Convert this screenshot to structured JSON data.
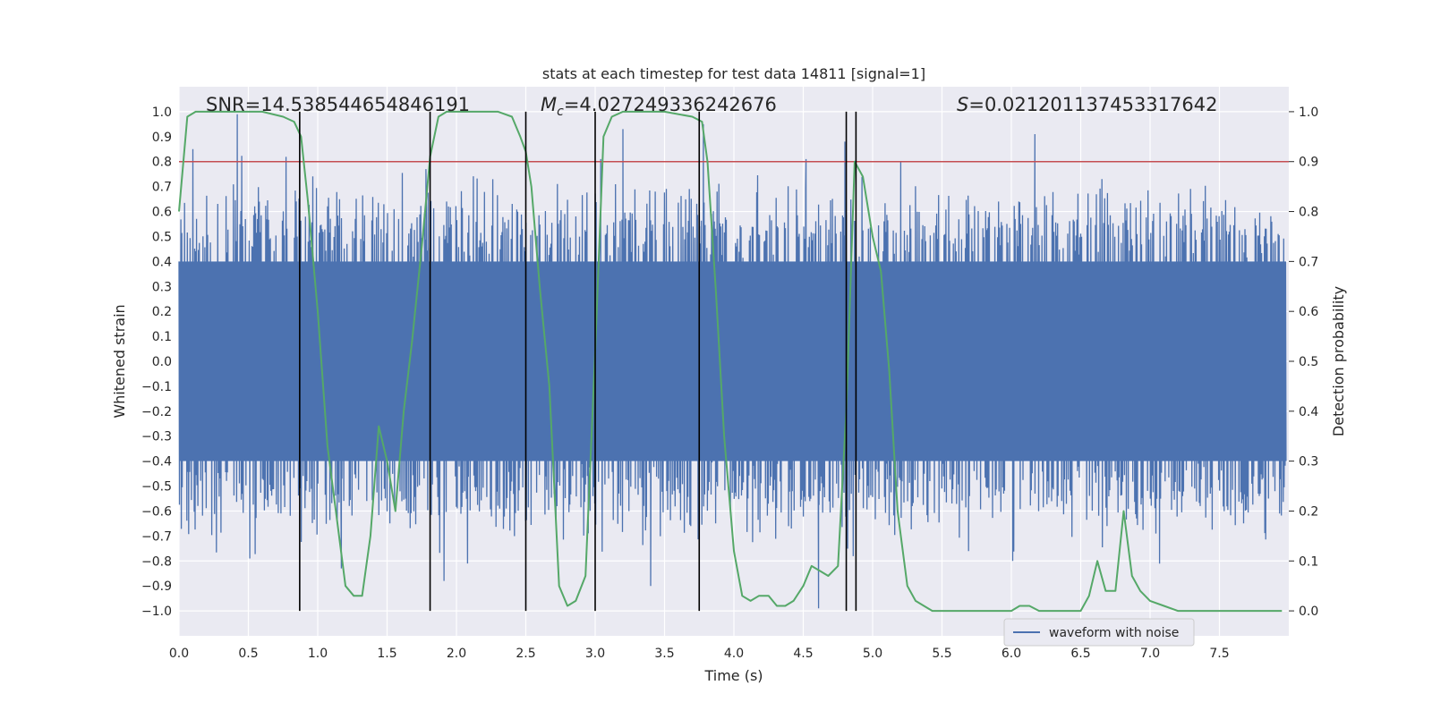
{
  "chart_data": {
    "type": "line",
    "title": "stats at each timestep for test data 14811 [signal=1]",
    "xlabel": "Time (s)",
    "ylabel": "Whitened strain",
    "y2label": "Detection probability",
    "xlim": [
      0.0,
      8.0
    ],
    "ylim": [
      -1.1,
      1.1
    ],
    "y2lim": [
      -0.05,
      1.05
    ],
    "xticks": [
      0.0,
      0.5,
      1.0,
      1.5,
      2.0,
      2.5,
      3.0,
      3.5,
      4.0,
      4.5,
      5.0,
      5.5,
      6.0,
      6.5,
      7.0,
      7.5
    ],
    "xtick_labels": [
      "0.0",
      "0.5",
      "1.0",
      "1.5",
      "2.0",
      "2.5",
      "3.0",
      "3.5",
      "4.0",
      "4.5",
      "5.0",
      "5.5",
      "6.0",
      "6.5",
      "7.0",
      "7.5"
    ],
    "yticks": [
      1.0,
      0.9,
      0.8,
      0.7,
      0.6,
      0.5,
      0.4,
      0.3,
      0.2,
      0.1,
      0.0,
      -0.1,
      -0.2,
      -0.3,
      -0.4,
      -0.5,
      -0.6,
      -0.7,
      -0.8,
      -0.9,
      -1.0
    ],
    "ytick_labels": [
      "1.0",
      "0.9",
      "0.8",
      "0.7",
      "0.6",
      "0.5",
      "0.4",
      "0.3",
      "0.2",
      "0.1",
      "0.0",
      "−0.1",
      "−0.2",
      "−0.3",
      "−0.4",
      "−0.5",
      "−0.6",
      "−0.7",
      "−0.8",
      "−0.9",
      "−1.0"
    ],
    "y2ticks": [
      1.0,
      0.9,
      0.8,
      0.7,
      0.6,
      0.5,
      0.4,
      0.3,
      0.2,
      0.1,
      0.0
    ],
    "y2tick_labels": [
      "1.0",
      "0.9",
      "0.8",
      "0.7",
      "0.6",
      "0.5",
      "0.4",
      "0.3",
      "0.2",
      "0.1",
      "0.0"
    ],
    "annotations": {
      "snr": "SNR=14.538544654846191",
      "mc_symbol": "M",
      "mc_sub": "c",
      "mc_value": "=4.027249336242676",
      "s_symbol": "S",
      "s_value": "=0.021201137453317642"
    },
    "threshold": {
      "axis": "y2",
      "value": 0.9,
      "color": "#c44e52"
    },
    "vlines": [
      0.87,
      1.81,
      2.5,
      3.0,
      3.75,
      4.81,
      4.88
    ],
    "waveform": {
      "name": "waveform with noise",
      "color": "#4c72b0",
      "band_core": 0.4,
      "band_hi": 0.65,
      "n_samples": 2400,
      "seed": 14811,
      "x_start": 0.0,
      "x_end": 7.98,
      "spikes": [
        {
          "x": 0.42,
          "y": 0.99
        },
        {
          "x": 0.1,
          "y": 0.78
        },
        {
          "x": 0.1,
          "y": 0.85
        },
        {
          "x": 0.51,
          "y": -0.79
        },
        {
          "x": 1.17,
          "y": -0.83
        },
        {
          "x": 1.78,
          "y": 0.77
        },
        {
          "x": 1.91,
          "y": -0.88
        },
        {
          "x": 2.08,
          "y": -0.81
        },
        {
          "x": 3.04,
          "y": 0.81
        },
        {
          "x": 3.2,
          "y": 0.93
        },
        {
          "x": 3.4,
          "y": -0.9
        },
        {
          "x": 3.78,
          "y": 0.95
        },
        {
          "x": 4.61,
          "y": -0.99
        },
        {
          "x": 4.8,
          "y": 0.88
        },
        {
          "x": 6.01,
          "y": -0.8
        },
        {
          "x": 6.17,
          "y": 0.91
        },
        {
          "x": 4.52,
          "y": 0.81
        }
      ]
    },
    "probability": {
      "name": "detection probability",
      "color": "#55a868",
      "x": [
        0.0,
        0.06,
        0.12,
        0.2,
        0.4,
        0.6,
        0.75,
        0.83,
        0.88,
        0.93,
        1.0,
        1.07,
        1.14,
        1.2,
        1.26,
        1.32,
        1.38,
        1.44,
        1.5,
        1.56,
        1.62,
        1.68,
        1.75,
        1.81,
        1.87,
        1.93,
        2.0,
        2.1,
        2.3,
        2.4,
        2.46,
        2.5,
        2.54,
        2.6,
        2.67,
        2.74,
        2.8,
        2.86,
        2.93,
        3.0,
        3.06,
        3.12,
        3.2,
        3.3,
        3.5,
        3.7,
        3.77,
        3.81,
        3.87,
        3.93,
        4.0,
        4.06,
        4.12,
        4.18,
        4.25,
        4.31,
        4.37,
        4.43,
        4.5,
        4.56,
        4.62,
        4.68,
        4.75,
        4.81,
        4.87,
        4.93,
        5.0,
        5.06,
        5.12,
        5.18,
        5.25,
        5.31,
        5.37,
        5.43,
        5.5,
        5.8,
        6.0,
        6.06,
        6.13,
        6.2,
        6.3,
        6.43,
        6.5,
        6.56,
        6.62,
        6.68,
        6.75,
        6.81,
        6.87,
        6.93,
        7.0,
        7.1,
        7.2,
        7.4,
        7.6,
        7.8,
        7.95
      ],
      "y": [
        0.8,
        0.99,
        1.0,
        1.0,
        1.0,
        1.0,
        0.99,
        0.98,
        0.95,
        0.82,
        0.6,
        0.33,
        0.18,
        0.05,
        0.03,
        0.03,
        0.15,
        0.37,
        0.3,
        0.2,
        0.4,
        0.54,
        0.73,
        0.91,
        0.99,
        1.0,
        1.0,
        1.0,
        1.0,
        0.99,
        0.95,
        0.92,
        0.85,
        0.65,
        0.45,
        0.05,
        0.01,
        0.02,
        0.07,
        0.52,
        0.95,
        0.99,
        1.0,
        1.0,
        1.0,
        0.99,
        0.98,
        0.9,
        0.64,
        0.35,
        0.12,
        0.03,
        0.02,
        0.03,
        0.03,
        0.01,
        0.01,
        0.02,
        0.05,
        0.09,
        0.08,
        0.07,
        0.09,
        0.4,
        0.9,
        0.87,
        0.75,
        0.68,
        0.48,
        0.2,
        0.05,
        0.02,
        0.01,
        0.0,
        0.0,
        0.0,
        0.0,
        0.01,
        0.01,
        0.0,
        0.0,
        0.0,
        0.0,
        0.03,
        0.1,
        0.04,
        0.04,
        0.2,
        0.07,
        0.04,
        0.02,
        0.01,
        0.0,
        0.0,
        0.0,
        0.0,
        0.0
      ]
    },
    "legend": {
      "placement": "lower-right",
      "entries": [
        "waveform with noise"
      ]
    }
  }
}
